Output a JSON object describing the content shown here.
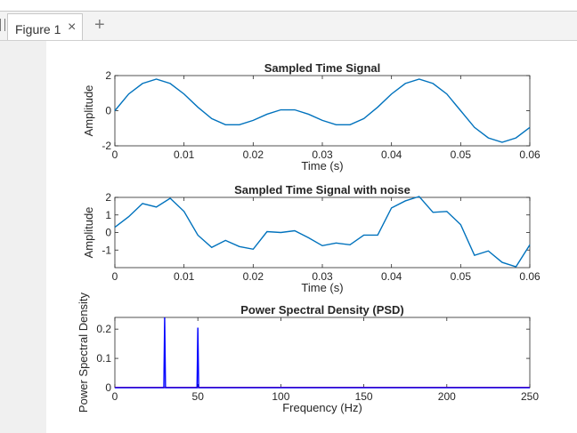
{
  "tab": {
    "label": "Figure 1",
    "close_icon": "close-icon",
    "add_icon": "plus-icon"
  },
  "colors": {
    "signal": "#0072bd",
    "psd": "#0000ff",
    "psd_floor": "#ff0000",
    "axes": "#262626"
  },
  "chart_data": [
    {
      "type": "line",
      "title": "Sampled Time Signal",
      "xlabel": "Time (s)",
      "ylabel": "Amplitude",
      "xlim": [
        0,
        0.06
      ],
      "ylim": [
        -2,
        2
      ],
      "xticks": [
        "0",
        "0.01",
        "0.02",
        "0.03",
        "0.04",
        "0.05",
        "0.06"
      ],
      "yticks": [
        "-2",
        "0",
        "2"
      ],
      "x": [
        0,
        0.002,
        0.004,
        0.006,
        0.008,
        0.01,
        0.012,
        0.014,
        0.016,
        0.018,
        0.02,
        0.022,
        0.024,
        0.026,
        0.028,
        0.03,
        0.032,
        0.034,
        0.036,
        0.038,
        0.04,
        0.042,
        0.044,
        0.046,
        0.048,
        0.05,
        0.052,
        0.054,
        0.056,
        0.058,
        0.06
      ],
      "y": [
        0,
        0.95,
        1.55,
        1.8,
        1.55,
        0.95,
        0.2,
        -0.45,
        -0.8,
        -0.8,
        -0.55,
        -0.2,
        0.05,
        0.05,
        -0.2,
        -0.55,
        -0.8,
        -0.8,
        -0.45,
        0.2,
        0.95,
        1.55,
        1.8,
        1.55,
        0.95,
        0,
        -0.95,
        -1.55,
        -1.8,
        -1.55,
        -0.95
      ]
    },
    {
      "type": "line",
      "title": "Sampled Time Signal with noise",
      "xlabel": "Time (s)",
      "ylabel": "Amplitude",
      "xlim": [
        0,
        0.06
      ],
      "ylim": [
        -2,
        2
      ],
      "xticks": [
        "0",
        "0.01",
        "0.02",
        "0.03",
        "0.04",
        "0.05",
        "0.06"
      ],
      "yticks": [
        "-1",
        "0",
        "1",
        "2"
      ],
      "x": [
        0,
        0.002,
        0.004,
        0.006,
        0.008,
        0.01,
        0.012,
        0.014,
        0.016,
        0.018,
        0.02,
        0.022,
        0.024,
        0.026,
        0.028,
        0.03,
        0.032,
        0.034,
        0.036,
        0.038,
        0.04,
        0.042,
        0.044,
        0.046,
        0.048,
        0.05,
        0.052,
        0.054,
        0.056,
        0.058,
        0.06
      ],
      "y": [
        0.3,
        0.9,
        1.65,
        1.45,
        1.95,
        1.2,
        -0.15,
        -0.85,
        -0.45,
        -0.8,
        -0.95,
        0.05,
        0.0,
        0.1,
        -0.3,
        -0.75,
        -0.6,
        -0.7,
        -0.15,
        -0.15,
        1.4,
        1.8,
        2.05,
        1.15,
        1.2,
        0.45,
        -1.3,
        -1.05,
        -1.7,
        -1.95,
        -0.7
      ]
    },
    {
      "type": "line",
      "title": "Power Spectral Density (PSD)",
      "xlabel": "Frequency (Hz)",
      "ylabel": "Power Spectral Density",
      "xlim": [
        0,
        250
      ],
      "ylim": [
        0,
        0.24
      ],
      "xticks": [
        "0",
        "50",
        "100",
        "150",
        "200",
        "250"
      ],
      "yticks": [
        "0",
        "0.1",
        "0.2"
      ],
      "series": [
        {
          "x": [
            0,
            29.5,
            30,
            30.5,
            49.5,
            50,
            50.5,
            250
          ],
          "y": [
            0,
            0,
            0.24,
            0,
            0,
            0.205,
            0,
            0
          ]
        }
      ]
    }
  ]
}
